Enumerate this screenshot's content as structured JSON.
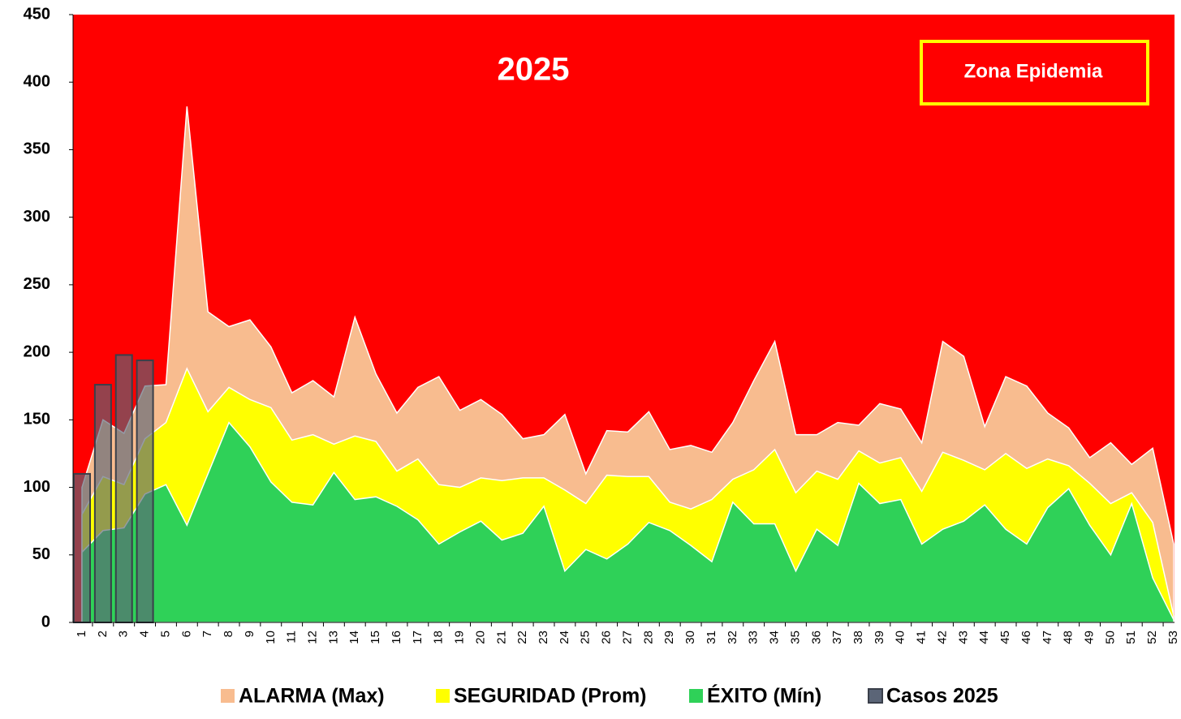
{
  "chart_data": {
    "type": "area",
    "title": "2025",
    "annotation": "Zona Epidemia",
    "background_color": "#ff0000",
    "categories": [
      "1",
      "2",
      "3",
      "4",
      "5",
      "6",
      "7",
      "8",
      "9",
      "10",
      "11",
      "12",
      "13",
      "14",
      "15",
      "16",
      "17",
      "18",
      "19",
      "20",
      "21",
      "22",
      "23",
      "24",
      "25",
      "26",
      "27",
      "28",
      "29",
      "30",
      "31",
      "32",
      "33",
      "34",
      "35",
      "36",
      "37",
      "38",
      "39",
      "40",
      "41",
      "42",
      "43",
      "44",
      "45",
      "46",
      "47",
      "48",
      "49",
      "50",
      "51",
      "52",
      "53"
    ],
    "ylim": [
      0,
      450
    ],
    "yticks": [
      0,
      50,
      100,
      150,
      200,
      250,
      300,
      350,
      400,
      450
    ],
    "series": [
      {
        "name": "ALARMA (Max)",
        "color": "#f8bc8f",
        "kind": "area",
        "values": [
          100,
          150,
          140,
          175,
          176,
          382,
          230,
          219,
          224,
          204,
          170,
          179,
          167,
          226,
          184,
          155,
          174,
          182,
          157,
          165,
          154,
          136,
          139,
          154,
          110,
          142,
          141,
          156,
          128,
          131,
          126,
          148,
          179,
          208,
          139,
          139,
          148,
          146,
          162,
          158,
          133,
          208,
          197,
          145,
          182,
          175,
          155,
          144,
          122,
          133,
          117,
          129,
          58
        ]
      },
      {
        "name": "SEGURIDAD (Prom)",
        "color": "#ffff00",
        "kind": "area",
        "values": [
          80,
          108,
          102,
          136,
          148,
          188,
          156,
          174,
          165,
          159,
          135,
          139,
          132,
          138,
          134,
          112,
          121,
          102,
          100,
          107,
          105,
          107,
          107,
          98,
          88,
          109,
          108,
          108,
          89,
          84,
          91,
          106,
          113,
          128,
          96,
          112,
          106,
          127,
          118,
          122,
          97,
          126,
          120,
          113,
          125,
          114,
          121,
          116,
          103,
          88,
          96,
          74,
          5
        ]
      },
      {
        "name": "ÉXITO (Mín)",
        "color": "#2fd158",
        "kind": "area",
        "values": [
          52,
          68,
          70,
          95,
          102,
          72,
          110,
          148,
          130,
          104,
          89,
          87,
          111,
          91,
          93,
          86,
          76,
          58,
          67,
          75,
          61,
          66,
          86,
          38,
          54,
          47,
          58,
          74,
          68,
          57,
          45,
          89,
          73,
          73,
          38,
          69,
          57,
          103,
          88,
          91,
          58,
          69,
          75,
          87,
          69,
          58,
          85,
          99,
          72,
          50,
          88,
          33,
          2
        ]
      },
      {
        "name": "Casos 2025",
        "color": "#5b6577",
        "kind": "bar",
        "values": [
          110,
          176,
          198,
          194,
          null,
          null,
          null,
          null,
          null,
          null,
          null,
          null,
          null,
          null,
          null,
          null,
          null,
          null,
          null,
          null,
          null,
          null,
          null,
          null,
          null,
          null,
          null,
          null,
          null,
          null,
          null,
          null,
          null,
          null,
          null,
          null,
          null,
          null,
          null,
          null,
          null,
          null,
          null,
          null,
          null,
          null,
          null,
          null,
          null,
          null,
          null,
          null,
          null
        ]
      }
    ]
  }
}
